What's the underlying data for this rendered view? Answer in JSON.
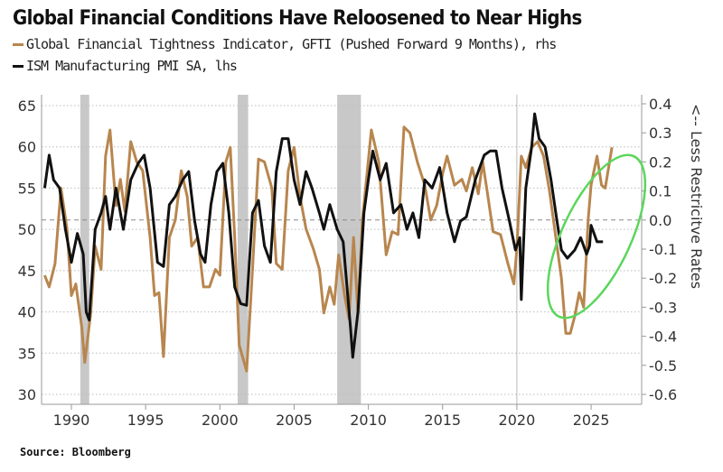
{
  "chart_data": {
    "type": "line",
    "title": "Global Financial Conditions Have Reloosened to Near Highs",
    "source": "Source: Bloomberg",
    "x_ticks": [
      "1990",
      "1995",
      "2000",
      "2005",
      "2010",
      "2015",
      "2020",
      "2025"
    ],
    "xlim": [
      1988,
      2028
    ],
    "left_axis": {
      "ylim": [
        30,
        65
      ],
      "ticks": [
        "30",
        "35",
        "40",
        "45",
        "50",
        "55",
        "60",
        "65"
      ]
    },
    "right_axis": {
      "label": "<-- Less Restricitve Rates",
      "ylim": [
        -0.6,
        0.4
      ],
      "ticks": [
        "-0.6",
        "-0.5",
        "-0.4",
        "-0.3",
        "-0.2",
        "-0.1",
        "0.0",
        "0.1",
        "0.2",
        "0.3",
        "0.4"
      ]
    },
    "grid": "horizontal dotted",
    "recessions": [
      [
        1990.6,
        1991.2
      ],
      [
        2001.2,
        2001.9
      ],
      [
        2007.9,
        2009.5
      ]
    ],
    "vertical_marker": 2020,
    "annotation": {
      "type": "ellipse",
      "color": "#5cd65c",
      "around": "2023-2026"
    },
    "series": [
      {
        "name": "Global Financial Tightness Indicator, GFTI (Pushed Forward 9 Months), rhs",
        "axis": "right",
        "color": "#b8864e",
        "x": [
          1988.2,
          1988.5,
          1988.9,
          1989.3,
          1989.7,
          1990.0,
          1990.3,
          1990.7,
          1990.9,
          1991.3,
          1991.6,
          1992.0,
          1992.3,
          1992.6,
          1993.0,
          1993.3,
          1993.6,
          1994.0,
          1994.4,
          1994.8,
          1995.3,
          1995.6,
          1995.9,
          1996.2,
          1996.6,
          1997.0,
          1997.4,
          1997.8,
          1998.1,
          1998.5,
          1998.9,
          1999.3,
          1999.7,
          2000.0,
          2000.4,
          2000.7,
          2001.0,
          2001.3,
          2001.8,
          2002.2,
          2002.6,
          2003.0,
          2003.5,
          2003.8,
          2004.2,
          2004.6,
          2005.0,
          2005.4,
          2005.8,
          2006.3,
          2006.7,
          2007.0,
          2007.4,
          2007.7,
          2008.0,
          2008.4,
          2008.7,
          2009.0,
          2009.3,
          2009.6,
          2010.2,
          2010.7,
          2011.2,
          2011.6,
          2012.0,
          2012.4,
          2012.8,
          2013.3,
          2013.8,
          2014.2,
          2014.6,
          2015.0,
          2015.3,
          2015.8,
          2016.3,
          2016.6,
          2017.0,
          2017.4,
          2017.7,
          2018.0,
          2018.4,
          2018.9,
          2019.4,
          2019.8,
          2020.0,
          2020.3,
          2020.6,
          2021.0,
          2021.4,
          2021.8,
          2022.2,
          2022.6,
          2023.0,
          2023.3,
          2023.6,
          2023.9,
          2024.2,
          2024.5,
          2024.8,
          2025.0,
          2025.4,
          2025.7,
          2025.95,
          2026.4
        ],
        "values": [
          -0.19,
          -0.23,
          -0.15,
          0.11,
          -0.03,
          -0.26,
          -0.22,
          -0.37,
          -0.49,
          -0.32,
          -0.09,
          -0.17,
          0.22,
          0.31,
          0.05,
          0.14,
          0.03,
          0.27,
          0.2,
          0.17,
          -0.06,
          -0.26,
          -0.25,
          -0.47,
          -0.06,
          0.0,
          0.17,
          0.08,
          -0.09,
          -0.06,
          -0.23,
          -0.23,
          -0.17,
          -0.19,
          0.2,
          0.25,
          -0.06,
          -0.43,
          -0.52,
          -0.17,
          0.21,
          0.2,
          0.11,
          -0.15,
          -0.17,
          0.17,
          0.25,
          0.08,
          -0.03,
          -0.1,
          -0.17,
          -0.32,
          -0.23,
          -0.29,
          -0.12,
          -0.26,
          -0.34,
          -0.06,
          -0.32,
          0.0,
          0.31,
          0.2,
          -0.12,
          -0.04,
          -0.05,
          0.32,
          0.3,
          0.2,
          0.12,
          0.0,
          0.05,
          0.16,
          0.22,
          0.12,
          0.14,
          0.1,
          0.18,
          0.09,
          0.2,
          0.1,
          -0.04,
          -0.05,
          -0.15,
          -0.22,
          -0.1,
          0.22,
          0.18,
          0.25,
          0.27,
          0.22,
          0.1,
          -0.05,
          -0.2,
          -0.39,
          -0.39,
          -0.33,
          -0.25,
          -0.3,
          0.0,
          0.12,
          0.22,
          0.12,
          0.11,
          0.25
        ]
      },
      {
        "name": "ISM Manufacturing PMI SA, lhs",
        "axis": "left",
        "color": "#111111",
        "x": [
          1988.2,
          1988.5,
          1988.8,
          1989.2,
          1989.6,
          1990.0,
          1990.4,
          1990.8,
          1991.0,
          1991.2,
          1991.6,
          1992.0,
          1992.3,
          1992.6,
          1993.0,
          1993.5,
          1994.0,
          1994.5,
          1994.9,
          1995.3,
          1995.8,
          1996.2,
          1996.6,
          1997.0,
          1997.5,
          1997.9,
          1998.3,
          1998.7,
          1999.0,
          1999.4,
          1999.8,
          2000.2,
          2000.6,
          2001.0,
          2001.4,
          2001.8,
          2002.2,
          2002.6,
          2003.0,
          2003.4,
          2003.8,
          2004.2,
          2004.6,
          2005.0,
          2005.4,
          2005.8,
          2006.2,
          2006.7,
          2007.0,
          2007.4,
          2007.9,
          2008.3,
          2008.8,
          2008.95,
          2009.3,
          2009.7,
          2010.0,
          2010.3,
          2010.8,
          2011.2,
          2011.7,
          2012.2,
          2012.6,
          2013.0,
          2013.4,
          2013.8,
          2014.3,
          2014.8,
          2015.3,
          2015.8,
          2016.2,
          2016.6,
          2017.2,
          2017.8,
          2018.2,
          2018.6,
          2019.0,
          2019.5,
          2019.9,
          2020.2,
          2020.3,
          2020.6,
          2021.0,
          2021.2,
          2021.5,
          2021.9,
          2022.3,
          2022.7,
          2023.0,
          2023.4,
          2023.9,
          2024.3,
          2024.7,
          2024.9,
          2025.0,
          2025.4,
          2025.8
        ],
        "values": [
          55,
          59,
          56,
          55,
          50,
          46,
          49.5,
          47,
          40,
          39,
          50,
          52,
          54,
          50,
          55,
          50,
          56,
          58,
          59,
          55,
          46,
          45.5,
          53,
          54,
          56,
          57,
          51,
          47,
          46,
          53,
          57,
          58,
          52,
          43,
          41,
          40.8,
          52,
          53.5,
          48,
          46,
          57,
          61,
          61,
          56,
          53,
          57,
          55,
          52,
          50,
          53,
          50,
          48.5,
          38,
          34.5,
          40,
          52,
          56,
          59.5,
          56,
          58,
          52,
          53,
          50,
          52,
          49,
          56,
          55,
          57.5,
          52,
          48.5,
          51,
          51.5,
          56,
          59,
          59.5,
          59.5,
          55,
          51,
          47.5,
          49,
          41.5,
          55,
          60,
          64,
          61,
          60,
          56,
          51,
          47.5,
          46.5,
          47.5,
          49,
          47,
          48,
          50.5,
          48.5,
          48.5
        ]
      }
    ]
  }
}
